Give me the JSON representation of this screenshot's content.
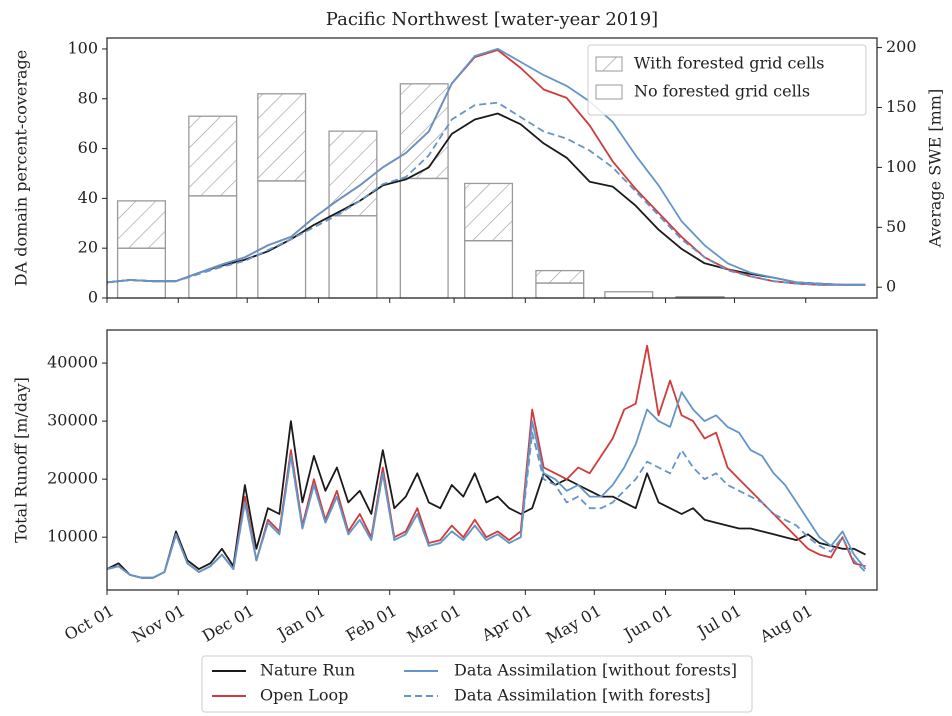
{
  "chart_data": [
    {
      "type": "bar",
      "title": "Pacific Northwest [water-year 2019]",
      "y_label": "DA domain percent-coverage",
      "y2_label": "Average SWE [mm]",
      "xlim": [
        0,
        335
      ],
      "xticks": [
        0,
        31,
        61,
        92,
        123,
        151,
        182,
        212,
        243,
        273,
        304
      ],
      "ylim": [
        0,
        104.4
      ],
      "yticks": [
        0,
        20,
        40,
        60,
        80,
        100
      ],
      "y2lim": [
        -9,
        208
      ],
      "y2ticks": [
        0,
        50,
        100,
        150,
        200
      ],
      "legend": "upper right",
      "bars": {
        "x": [
          15,
          46,
          76,
          107,
          138,
          166,
          197,
          227,
          258,
          288,
          319
        ],
        "edge_color": "#9a9a9a",
        "series": [
          {
            "name": "No forested grid cells",
            "values": [
              20,
              41,
              47,
              33,
              48,
              23,
              6,
              2.5,
              0.5,
              0,
              0
            ]
          },
          {
            "name": "With forested grid cells",
            "hatch": true,
            "values": [
              19,
              32,
              35,
              34,
              38,
              23,
              5,
              0,
              0,
              0,
              0
            ]
          }
        ]
      },
      "x": [
        0,
        10,
        20,
        30,
        40,
        50,
        60,
        70,
        80,
        90,
        100,
        110,
        120,
        130,
        140,
        150,
        160,
        170,
        180,
        190,
        200,
        210,
        220,
        230,
        240,
        250,
        260,
        270,
        280,
        290,
        300,
        310,
        320,
        330
      ],
      "series": [
        {
          "color": "#1a1a1a",
          "axis": "y2",
          "values": [
            4,
            6,
            5,
            5,
            12,
            18,
            23,
            30,
            40,
            52,
            62,
            72,
            85,
            90,
            100,
            128,
            140,
            145,
            136,
            120,
            108,
            88,
            84,
            68,
            48,
            32,
            20,
            15,
            11,
            8,
            4,
            3,
            2,
            2
          ]
        },
        {
          "color": "#d03b3b",
          "axis": "y2",
          "values": [
            4,
            6,
            5,
            5,
            12,
            19,
            25,
            35,
            42,
            58,
            72,
            85,
            100,
            112,
            130,
            170,
            192,
            198,
            183,
            165,
            158,
            135,
            105,
            82,
            62,
            42,
            25,
            15,
            9,
            5,
            3,
            2,
            2,
            2
          ]
        },
        {
          "color": "#6495c8",
          "axis": "y2",
          "values": [
            4,
            6,
            5,
            5,
            12,
            19,
            25,
            35,
            42,
            58,
            72,
            85,
            100,
            112,
            130,
            170,
            193,
            199,
            188,
            177,
            168,
            155,
            138,
            110,
            85,
            55,
            35,
            20,
            12,
            8,
            4,
            3,
            2,
            2
          ]
        },
        {
          "color": "#6495c8",
          "axis": "y2",
          "dash": true,
          "values": [
            4,
            6,
            5,
            5,
            11,
            17,
            22,
            31,
            40,
            50,
            60,
            72,
            86,
            92,
            110,
            140,
            152,
            154,
            142,
            130,
            124,
            114,
            100,
            80,
            60,
            40,
            25,
            14,
            9,
            5,
            3,
            2,
            2,
            2
          ]
        }
      ]
    },
    {
      "type": "line",
      "y_label": "Total Runoff [m/day]",
      "xlim": [
        0,
        335
      ],
      "xticks": [
        {
          "value": 0,
          "label": "Oct 01"
        },
        {
          "value": 31,
          "label": "Nov 01"
        },
        {
          "value": 61,
          "label": "Dec 01"
        },
        {
          "value": 92,
          "label": "Jan 01"
        },
        {
          "value": 123,
          "label": "Feb 01"
        },
        {
          "value": 151,
          "label": "Mar 01"
        },
        {
          "value": 182,
          "label": "Apr 01"
        },
        {
          "value": 212,
          "label": "May 01"
        },
        {
          "value": 243,
          "label": "Jun 01"
        },
        {
          "value": 273,
          "label": "Jul 01"
        },
        {
          "value": 304,
          "label": "Aug 01"
        }
      ],
      "ylim": [
        900,
        45700
      ],
      "yticks": [
        10000,
        20000,
        30000,
        40000
      ],
      "legend": "below",
      "x": [
        0,
        5,
        10,
        15,
        20,
        25,
        30,
        35,
        40,
        45,
        50,
        55,
        60,
        65,
        70,
        75,
        80,
        85,
        90,
        95,
        100,
        105,
        110,
        115,
        120,
        125,
        130,
        135,
        140,
        145,
        150,
        155,
        160,
        165,
        170,
        175,
        180,
        185,
        190,
        195,
        200,
        205,
        210,
        215,
        220,
        225,
        230,
        235,
        240,
        245,
        250,
        255,
        260,
        265,
        270,
        275,
        280,
        285,
        290,
        295,
        300,
        305,
        310,
        315,
        320,
        325,
        330
      ],
      "series": [
        {
          "name": "Nature Run",
          "color": "#1a1a1a",
          "values": [
            4500,
            5500,
            3500,
            3000,
            3000,
            4000,
            11000,
            6000,
            4500,
            5500,
            8000,
            5000,
            19000,
            8000,
            15000,
            14000,
            30000,
            16000,
            24000,
            18000,
            22000,
            16000,
            18000,
            14000,
            25000,
            15000,
            17000,
            21000,
            16000,
            15000,
            19000,
            17000,
            21000,
            16000,
            17000,
            15000,
            14000,
            15000,
            21000,
            19000,
            20000,
            19000,
            18000,
            17000,
            17000,
            16000,
            15000,
            21000,
            16000,
            15000,
            14000,
            15000,
            13000,
            12500,
            12000,
            11500,
            11500,
            11000,
            10500,
            10000,
            9500,
            10500,
            9000,
            8500,
            8000,
            8000,
            7000
          ]
        },
        {
          "name": "Open Loop",
          "color": "#d03b3b",
          "values": [
            4500,
            5000,
            3500,
            3000,
            3000,
            4000,
            10500,
            5500,
            4000,
            5000,
            7000,
            4500,
            17000,
            6000,
            13000,
            11000,
            25000,
            12000,
            20000,
            13000,
            18000,
            11000,
            14000,
            10000,
            22000,
            10000,
            11000,
            15000,
            9000,
            9500,
            12000,
            10000,
            13000,
            10000,
            11000,
            9500,
            11000,
            32000,
            22000,
            21000,
            20000,
            22000,
            21000,
            24000,
            27000,
            32000,
            33000,
            43000,
            31000,
            37000,
            31000,
            30000,
            27000,
            28000,
            22000,
            20000,
            18000,
            16000,
            14000,
            12000,
            10000,
            8000,
            7000,
            6500,
            10000,
            5500,
            5000
          ]
        },
        {
          "name": "Data Assimilation [without forests]",
          "color": "#6495c8",
          "values": [
            4500,
            5000,
            3500,
            3000,
            3000,
            4000,
            10500,
            5500,
            4000,
            5000,
            7000,
            4500,
            16000,
            6000,
            12500,
            10500,
            24000,
            11500,
            19000,
            12500,
            17000,
            10500,
            13000,
            9500,
            21000,
            9500,
            10500,
            14000,
            8500,
            9000,
            11000,
            9500,
            12000,
            9500,
            10500,
            9000,
            10000,
            30000,
            21000,
            20000,
            18000,
            19000,
            17000,
            17000,
            19000,
            22000,
            26000,
            32000,
            30000,
            29000,
            35000,
            32000,
            30000,
            31000,
            29000,
            28000,
            25000,
            24000,
            21000,
            19000,
            16000,
            13000,
            10000,
            8500,
            11000,
            7000,
            4500
          ]
        },
        {
          "name": "Data Assimilation [with forests]",
          "color": "#6495c8",
          "dash": true,
          "values": [
            4500,
            5000,
            3500,
            3000,
            3000,
            4000,
            10500,
            5500,
            4000,
            5000,
            7000,
            4500,
            16000,
            6000,
            12500,
            10500,
            24000,
            11500,
            19000,
            12500,
            17000,
            10500,
            13000,
            9500,
            21000,
            9500,
            10500,
            14000,
            8500,
            9000,
            11000,
            9500,
            12000,
            9500,
            10500,
            9000,
            10000,
            28000,
            20000,
            19000,
            16000,
            17000,
            15000,
            15000,
            16000,
            18000,
            20000,
            23000,
            22000,
            21000,
            25000,
            22000,
            20000,
            21000,
            19000,
            18000,
            17000,
            16000,
            14000,
            13000,
            12000,
            10000,
            8500,
            7500,
            10000,
            6000,
            4000
          ]
        }
      ]
    }
  ]
}
